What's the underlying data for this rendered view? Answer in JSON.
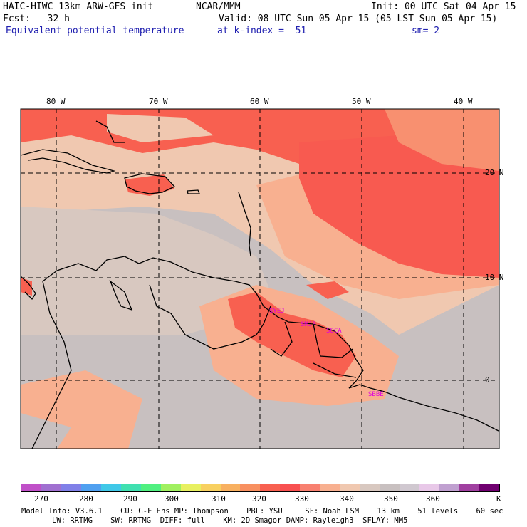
{
  "header": {
    "model": "HAIC-HIWC 13km ARW-GFS init",
    "org": "NCAR/MMM",
    "init": "Init: 00 UTC Sat 04 Apr 15",
    "fcst": "Fcst:   32 h",
    "valid": "Valid: 08 UTC Sun 05 Apr 15 (05 LST Sun 05 Apr 15)",
    "field": "Equivalent potential temperature",
    "level": "at k-index =  51",
    "smooth": "sm= 2"
  },
  "map": {
    "lon_labels": [
      "80 W",
      "70 W",
      "60 W",
      "50 W",
      "40 W"
    ],
    "lat_labels": [
      "20 N",
      "10 N",
      "0"
    ],
    "stations": [
      "SYEJ",
      "SMJP",
      "SOCA",
      "SBBE"
    ]
  },
  "colorbar": {
    "colors": [
      "#c050c8",
      "#a070d0",
      "#8080e8",
      "#50a0f0",
      "#40c8e8",
      "#40e0b0",
      "#50f080",
      "#a0f060",
      "#e8f060",
      "#f8d060",
      "#f8b060",
      "#f89060",
      "#f86050",
      "#f85050",
      "#f88070",
      "#f8b090",
      "#f0c8b0",
      "#d8c8c0",
      "#c8c0c0",
      "#d0c8d0",
      "#e8c8e8",
      "#c0a0d0",
      "#a040a0",
      "#700070"
    ],
    "labels": [
      "270",
      "280",
      "290",
      "300",
      "310",
      "320",
      "330",
      "340",
      "350",
      "360",
      "K"
    ],
    "unit": "K"
  },
  "footer": {
    "line1": "Model Info: V3.6.1    CU: G-F Ens MP: Thompson    PBL: YSU     SF: Noah LSM    13 km    51 levels    60 sec",
    "line2": "LW: RRTMG    SW: RRTMG  DIFF: full    KM: 2D Smagor DAMP: Rayleigh3  SFLAY: MM5"
  }
}
